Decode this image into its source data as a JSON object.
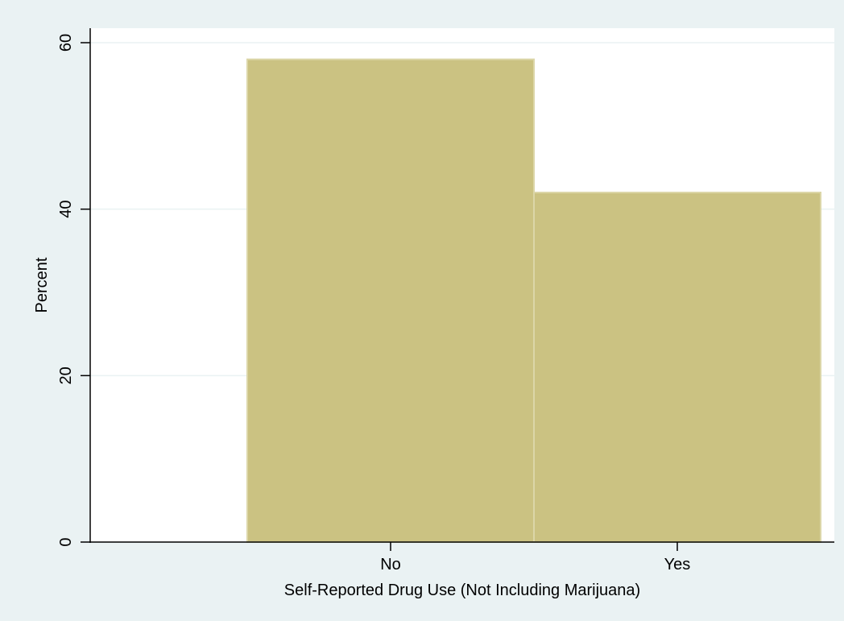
{
  "chart_data": {
    "type": "bar",
    "categories": [
      "No",
      "Yes"
    ],
    "values": [
      58,
      42
    ],
    "xlabel": "Self-Reported Drug Use (Not Including Marijuana)",
    "ylabel": "Percent",
    "ylim": [
      0,
      60
    ],
    "yticks": [
      0,
      20,
      40,
      60
    ],
    "grid": true,
    "colors": {
      "background": "#eaf2f3",
      "plot_area": "#ffffff",
      "bar_fill": "#cbc282",
      "bar_edge": "#dcd6a8",
      "grid": "#eaf2f3",
      "axis": "#000000"
    }
  }
}
